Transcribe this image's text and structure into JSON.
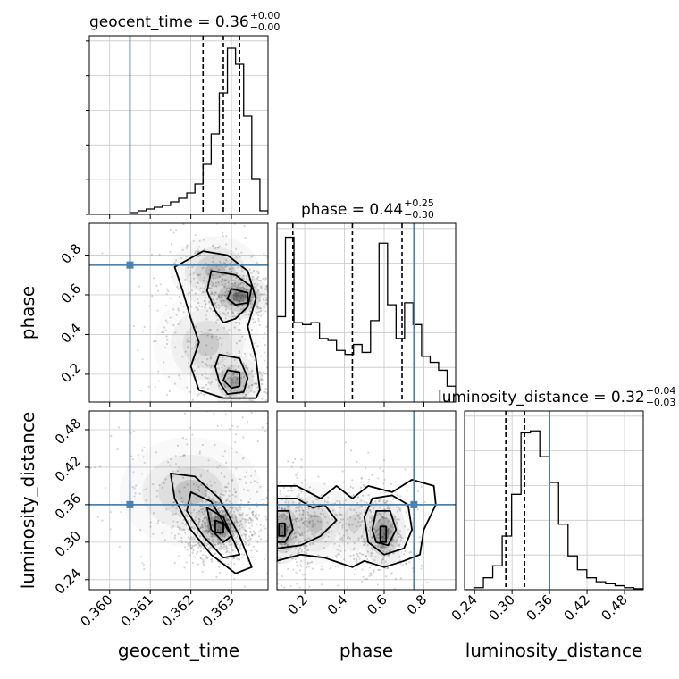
{
  "chart_data": {
    "type": "corner",
    "parameters": [
      "geocent_time",
      "phase",
      "luminosity_distance"
    ],
    "truth": {
      "geocent_time": 0.3605,
      "phase": 0.75,
      "luminosity_distance": 0.36
    },
    "colors": {
      "truth": "#4682b4",
      "hist": "#000000",
      "grid": "#c8c8c8",
      "points": "#888888"
    },
    "grid": true,
    "titles": [
      {
        "param": "geocent_time",
        "text": "geocent_time = 0.36",
        "sup": "+0.00",
        "sub": "−0.00"
      },
      {
        "param": "phase",
        "text": "phase = 0.44",
        "sup": "+0.25",
        "sub": "−0.30"
      },
      {
        "param": "luminosity_distance",
        "text": "luminosity_distance = 0.32",
        "sup": "+0.04",
        "sub": "−0.03"
      }
    ],
    "axes": {
      "geocent_time": {
        "range": [
          0.3595,
          0.3639
        ],
        "ticks": [
          0.36,
          0.361,
          0.362,
          0.363
        ],
        "tick_labels": [
          "0.360",
          "0.361",
          "0.362",
          "0.363"
        ],
        "xlabel": "geocent_time"
      },
      "phase": {
        "range": [
          0.06,
          0.96
        ],
        "ticks": [
          0.2,
          0.4,
          0.6,
          0.8
        ],
        "tick_labels": [
          "0.2",
          "0.4",
          "0.6",
          "0.8"
        ],
        "xlabel": "phase",
        "ylabel": "phase"
      },
      "luminosity_distance": {
        "range": [
          0.224,
          0.51
        ],
        "ticks": [
          0.24,
          0.3,
          0.36,
          0.42,
          0.48
        ],
        "tick_labels": [
          "0.24",
          "0.30",
          "0.36",
          "0.42",
          "0.48"
        ],
        "xlabel": "luminosity_distance",
        "ylabel": "luminosity_distance"
      }
    },
    "histograms": [
      {
        "param": "geocent_time",
        "range": [
          0.3595,
          0.3639
        ],
        "values": [
          0,
          0,
          0,
          0,
          0,
          1,
          2,
          3,
          4,
          5,
          7,
          9,
          12,
          17,
          28,
          45,
          68,
          93,
          84,
          55,
          20,
          2
        ],
        "quantiles": [
          0.3623,
          0.3628,
          0.3632
        ],
        "ymax": 100
      },
      {
        "param": "phase",
        "range": [
          0.06,
          0.96
        ],
        "values": [
          43,
          83,
          40,
          39,
          40,
          32,
          31,
          26,
          24,
          29,
          25,
          41,
          80,
          49,
          32,
          50,
          39,
          23,
          20,
          16,
          8
        ],
        "quantiles": [
          0.14,
          0.44,
          0.69
        ],
        "ymax": 90
      },
      {
        "param": "luminosity_distance",
        "range": [
          0.224,
          0.51
        ],
        "values": [
          0,
          1,
          6,
          12,
          27,
          48,
          79,
          80,
          67,
          54,
          33,
          17,
          10,
          6,
          4,
          3,
          2,
          1,
          0.5
        ],
        "quantiles": [
          0.29,
          0.32,
          0.36
        ],
        "ymax": 90
      }
    ],
    "hist2d": [
      {
        "x": "geocent_time",
        "y": "phase",
        "blobs": [
          {
            "cx": 0.3632,
            "cy": 0.59,
            "sx": 0.00035,
            "sy": 0.05,
            "w": 1.0
          },
          {
            "cx": 0.3631,
            "cy": 0.16,
            "sx": 0.0003,
            "sy": 0.06,
            "w": 0.7
          },
          {
            "cx": 0.3626,
            "cy": 0.72,
            "sx": 0.0005,
            "sy": 0.08,
            "w": 0.5
          },
          {
            "cx": 0.3624,
            "cy": 0.35,
            "sx": 0.0006,
            "sy": 0.12,
            "w": 0.35
          }
        ],
        "contours": [
          [
            [
              0.3623,
              0.82
            ],
            [
              0.3629,
              0.8
            ],
            [
              0.3634,
              0.72
            ],
            [
              0.3636,
              0.58
            ],
            [
              0.3634,
              0.44
            ],
            [
              0.3636,
              0.28
            ],
            [
              0.3637,
              0.12
            ],
            [
              0.3636,
              0.08
            ],
            [
              0.3628,
              0.08
            ],
            [
              0.3622,
              0.12
            ],
            [
              0.362,
              0.24
            ],
            [
              0.3622,
              0.36
            ],
            [
              0.362,
              0.48
            ],
            [
              0.3618,
              0.62
            ],
            [
              0.3616,
              0.74
            ]
          ],
          [
            [
              0.3625,
              0.72
            ],
            [
              0.3631,
              0.7
            ],
            [
              0.3635,
              0.64
            ],
            [
              0.3634,
              0.54
            ],
            [
              0.3631,
              0.48
            ],
            [
              0.3628,
              0.46
            ],
            [
              0.3626,
              0.52
            ],
            [
              0.3624,
              0.62
            ]
          ],
          [
            [
              0.3627,
              0.3
            ],
            [
              0.3632,
              0.28
            ],
            [
              0.3634,
              0.18
            ],
            [
              0.3633,
              0.11
            ],
            [
              0.3629,
              0.1
            ],
            [
              0.3627,
              0.16
            ],
            [
              0.3626,
              0.24
            ]
          ],
          [
            [
              0.363,
              0.63
            ],
            [
              0.3634,
              0.61
            ],
            [
              0.3634,
              0.56
            ],
            [
              0.3631,
              0.55
            ],
            [
              0.3629,
              0.58
            ]
          ],
          [
            [
              0.3629,
              0.22
            ],
            [
              0.3632,
              0.21
            ],
            [
              0.3632,
              0.14
            ],
            [
              0.363,
              0.13
            ],
            [
              0.3628,
              0.17
            ]
          ]
        ]
      },
      {
        "x": "geocent_time",
        "y": "luminosity_distance",
        "blobs": [
          {
            "cx": 0.3627,
            "cy": 0.325,
            "sx": 0.0003,
            "sy": 0.018,
            "w": 1.0
          },
          {
            "cx": 0.362,
            "cy": 0.38,
            "sx": 0.0008,
            "sy": 0.04,
            "w": 0.4
          }
        ],
        "contours": [
          [
            [
              0.3615,
              0.41
            ],
            [
              0.3621,
              0.405
            ],
            [
              0.3627,
              0.37
            ],
            [
              0.3632,
              0.31
            ],
            [
              0.3635,
              0.26
            ],
            [
              0.3631,
              0.25
            ],
            [
              0.3625,
              0.28
            ],
            [
              0.362,
              0.32
            ],
            [
              0.3616,
              0.37
            ]
          ],
          [
            [
              0.362,
              0.38
            ],
            [
              0.3625,
              0.365
            ],
            [
              0.363,
              0.31
            ],
            [
              0.3632,
              0.28
            ],
            [
              0.3628,
              0.275
            ],
            [
              0.3623,
              0.31
            ],
            [
              0.3619,
              0.35
            ]
          ],
          [
            [
              0.3624,
              0.355
            ],
            [
              0.3628,
              0.34
            ],
            [
              0.363,
              0.31
            ],
            [
              0.3628,
              0.3
            ],
            [
              0.3625,
              0.32
            ]
          ],
          [
            [
              0.3626,
              0.335
            ],
            [
              0.3628,
              0.33
            ],
            [
              0.3628,
              0.315
            ],
            [
              0.3626,
              0.315
            ]
          ]
        ]
      },
      {
        "x": "phase",
        "y": "luminosity_distance",
        "blobs": [
          {
            "cx": 0.09,
            "cy": 0.32,
            "sx": 0.05,
            "sy": 0.025,
            "w": 1.0
          },
          {
            "cx": 0.6,
            "cy": 0.315,
            "sx": 0.05,
            "sy": 0.025,
            "w": 1.0
          },
          {
            "cx": 0.25,
            "cy": 0.33,
            "sx": 0.08,
            "sy": 0.03,
            "w": 0.45
          },
          {
            "cx": 0.45,
            "cy": 0.33,
            "sx": 0.06,
            "sy": 0.03,
            "w": 0.3
          }
        ],
        "contours": [
          [
            [
              0.06,
              0.39
            ],
            [
              0.16,
              0.39
            ],
            [
              0.28,
              0.37
            ],
            [
              0.36,
              0.39
            ],
            [
              0.44,
              0.37
            ],
            [
              0.52,
              0.39
            ],
            [
              0.64,
              0.38
            ],
            [
              0.74,
              0.4
            ],
            [
              0.85,
              0.39
            ],
            [
              0.86,
              0.36
            ],
            [
              0.8,
              0.32
            ],
            [
              0.78,
              0.28
            ],
            [
              0.7,
              0.27
            ],
            [
              0.6,
              0.26
            ],
            [
              0.5,
              0.27
            ],
            [
              0.44,
              0.26
            ],
            [
              0.3,
              0.275
            ],
            [
              0.18,
              0.28
            ],
            [
              0.06,
              0.27
            ]
          ],
          [
            [
              0.06,
              0.37
            ],
            [
              0.16,
              0.37
            ],
            [
              0.24,
              0.355
            ],
            [
              0.3,
              0.36
            ],
            [
              0.36,
              0.335
            ],
            [
              0.28,
              0.31
            ],
            [
              0.18,
              0.295
            ],
            [
              0.06,
              0.29
            ]
          ],
          [
            [
              0.54,
              0.37
            ],
            [
              0.64,
              0.375
            ],
            [
              0.72,
              0.36
            ],
            [
              0.74,
              0.32
            ],
            [
              0.7,
              0.29
            ],
            [
              0.6,
              0.28
            ],
            [
              0.52,
              0.3
            ],
            [
              0.5,
              0.34
            ]
          ],
          [
            [
              0.06,
              0.35
            ],
            [
              0.12,
              0.35
            ],
            [
              0.14,
              0.32
            ],
            [
              0.1,
              0.3
            ],
            [
              0.06,
              0.3
            ]
          ],
          [
            [
              0.56,
              0.35
            ],
            [
              0.63,
              0.35
            ],
            [
              0.66,
              0.32
            ],
            [
              0.62,
              0.295
            ],
            [
              0.56,
              0.3
            ],
            [
              0.54,
              0.32
            ]
          ],
          [
            [
              0.07,
              0.33
            ],
            [
              0.1,
              0.33
            ],
            [
              0.1,
              0.31
            ],
            [
              0.07,
              0.31
            ]
          ],
          [
            [
              0.58,
              0.325
            ],
            [
              0.61,
              0.325
            ],
            [
              0.61,
              0.3
            ],
            [
              0.58,
              0.3
            ]
          ]
        ]
      }
    ]
  }
}
